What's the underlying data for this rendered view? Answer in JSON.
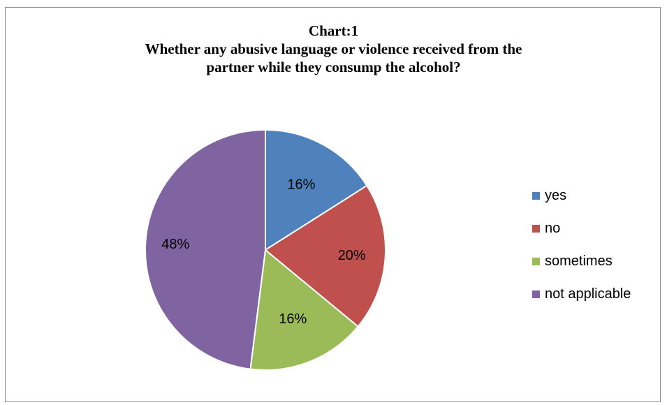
{
  "chart_data": {
    "type": "pie",
    "title_lines": [
      "Chart:1",
      "Whether any abusive language or violence received from the",
      "partner while they consump the alcohol?"
    ],
    "categories": [
      "yes",
      "no",
      "sometimes",
      "not applicable"
    ],
    "values": [
      16,
      20,
      16,
      48
    ],
    "labels": [
      "16%",
      "20%",
      "16%",
      "48%"
    ],
    "colors": [
      "#4f81bd",
      "#c0504d",
      "#9bbb59",
      "#8064a2"
    ],
    "legend_position": "right"
  }
}
